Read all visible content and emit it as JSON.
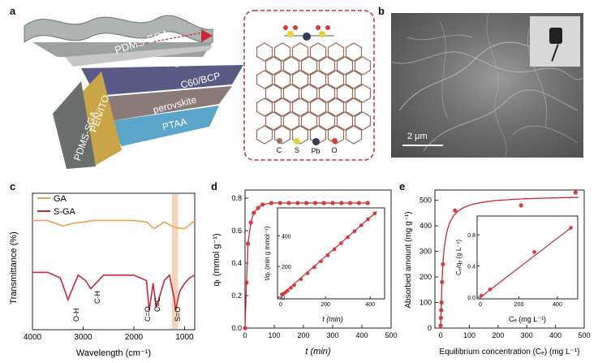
{
  "panels": {
    "a": {
      "label": "a",
      "layers": [
        "PDMS-SGA",
        "Ag",
        "C60/BCP",
        "perovskite",
        "PTAA",
        "PEN/ITO",
        "PDMS-SGA"
      ],
      "legend": [
        {
          "symbol": "C",
          "color": "#a07060"
        },
        {
          "symbol": "S",
          "color": "#e8d23a"
        },
        {
          "symbol": "Pb",
          "color": "#333c55"
        },
        {
          "symbol": "O",
          "color": "#d83a3a"
        }
      ]
    },
    "b": {
      "label": "b",
      "scale_bar": "2 μm"
    },
    "c": {
      "label": "c",
      "legend": [
        {
          "name": "GA",
          "color": "#f0a050"
        },
        {
          "name": "S-GA",
          "color": "#c8283a"
        }
      ],
      "ylabel": "Transmittance (%)",
      "xlabel": "Wavelength (cm⁻¹)",
      "xticks": [
        "4000",
        "3000",
        "2000",
        "1000"
      ],
      "peaks": [
        "O-H",
        "C-H",
        "C=O",
        "C=C",
        "S=O"
      ]
    },
    "d": {
      "label": "d",
      "ylabel": "qₜ (mmol g⁻¹)",
      "xlabel": "t (min)",
      "yticks": [
        "0.0",
        "0.2",
        "0.4",
        "0.6",
        "0.8"
      ],
      "xticks": [
        "0",
        "100",
        "200",
        "300",
        "400",
        "500"
      ],
      "inset_ylabel": "t/qₜ (min g mmol⁻¹)",
      "inset_xlabel": "t (min)",
      "inset_yticks": [
        "0",
        "200",
        "400"
      ],
      "inset_xticks": [
        "0",
        "200",
        "400"
      ]
    },
    "e": {
      "label": "e",
      "ylabel": "Absorbed amount (mg g⁻¹)",
      "xlabel": "Equilibrium concentration (Cₑ) (mg L⁻¹)",
      "yticks": [
        "0",
        "100",
        "200",
        "300",
        "400",
        "500"
      ],
      "xticks": [
        "0",
        "100",
        "200",
        "300",
        "400",
        "500"
      ],
      "inset_ylabel": "Cₑ/qₑ (g L⁻¹)",
      "inset_xlabel": "Cₑ (mg L⁻¹)",
      "inset_yticks": [
        "0.0",
        "0.4",
        "0.8"
      ],
      "inset_xticks": [
        "0",
        "200",
        "400"
      ]
    }
  },
  "chart_data": [
    {
      "type": "line",
      "xlabel": "Wavelength (cm⁻¹)",
      "ylabel": "Transmittance (%)",
      "xlim": [
        4000,
        800
      ],
      "series": [
        {
          "name": "GA",
          "x": [
            4000,
            3700,
            3400,
            3200,
            3000,
            2800,
            2400,
            2000,
            1750,
            1600,
            1400,
            1200,
            1000,
            900,
            800
          ],
          "y": [
            0.8,
            0.8,
            0.76,
            0.78,
            0.79,
            0.8,
            0.8,
            0.8,
            0.79,
            0.74,
            0.79,
            0.75,
            0.74,
            0.77,
            0.8
          ]
        },
        {
          "name": "S-GA",
          "x": [
            4000,
            3700,
            3450,
            3300,
            3100,
            2950,
            2850,
            2600,
            2000,
            1750,
            1700,
            1620,
            1560,
            1400,
            1300,
            1200,
            1180,
            1100,
            1000,
            900,
            800
          ],
          "y": [
            0.42,
            0.42,
            0.38,
            0.22,
            0.4,
            0.36,
            0.3,
            0.4,
            0.4,
            0.36,
            0.14,
            0.34,
            0.16,
            0.36,
            0.4,
            0.22,
            0.14,
            0.28,
            0.34,
            0.38,
            0.4
          ]
        }
      ]
    },
    {
      "type": "scatter",
      "xlabel": "t (min)",
      "ylabel": "qₜ (mmol g⁻¹)",
      "xlim": [
        0,
        500
      ],
      "ylim": [
        0,
        0.85
      ],
      "series": [
        {
          "x": [
            0,
            5,
            10,
            20,
            30,
            45,
            60,
            90,
            120,
            150,
            180,
            210,
            240,
            270,
            300,
            330,
            360,
            390,
            420
          ],
          "y": [
            0.0,
            0.28,
            0.52,
            0.65,
            0.71,
            0.74,
            0.76,
            0.77,
            0.77,
            0.77,
            0.77,
            0.77,
            0.77,
            0.77,
            0.77,
            0.77,
            0.77,
            0.77,
            0.77
          ]
        }
      ],
      "inset": {
        "xlabel": "t (min)",
        "ylabel": "t/qₜ (min g mmol⁻¹)",
        "xlim": [
          0,
          450
        ],
        "ylim": [
          0,
          560
        ],
        "x": [
          5,
          10,
          20,
          30,
          45,
          60,
          90,
          120,
          150,
          180,
          210,
          240,
          270,
          300,
          330,
          360,
          390,
          420
        ],
        "y": [
          18,
          20,
          31,
          42,
          61,
          79,
          117,
          156,
          195,
          234,
          273,
          312,
          351,
          390,
          429,
          468,
          507,
          545
        ]
      }
    },
    {
      "type": "scatter",
      "xlabel": "Equilibrium concentration (Cₑ) (mg L⁻¹)",
      "ylabel": "Absorbed amount (mg g⁻¹)",
      "xlim": [
        -20,
        500
      ],
      "ylim": [
        0,
        540
      ],
      "series": [
        {
          "x": [
            0,
            1,
            2,
            3,
            5,
            8,
            50,
            280,
            470
          ],
          "y": [
            10,
            40,
            70,
            100,
            180,
            250,
            460,
            480,
            530
          ]
        }
      ],
      "inset": {
        "xlabel": "Cₑ (mg L⁻¹)",
        "ylabel": "Cₑ/qₑ (g L⁻¹)",
        "xlim": [
          0,
          480
        ],
        "ylim": [
          0,
          1.0
        ],
        "x": [
          5,
          50,
          280,
          470
        ],
        "y": [
          0.02,
          0.1,
          0.58,
          0.89
        ]
      }
    }
  ]
}
